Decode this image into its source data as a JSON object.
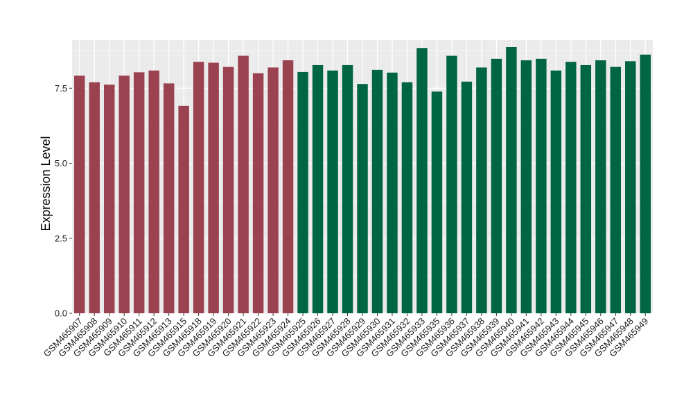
{
  "chart_data": {
    "type": "bar",
    "title": "",
    "xlabel": "",
    "ylabel": "Expression Level",
    "ylim": [
      0,
      9.1
    ],
    "yticks": [
      0.0,
      2.5,
      5.0,
      7.5
    ],
    "ytick_labels": [
      "0.0",
      "2.5",
      "5.0",
      "7.5"
    ],
    "grid": true,
    "legend": "none",
    "categories": [
      "GSM465907",
      "GSM465908",
      "GSM465909",
      "GSM465910",
      "GSM465911",
      "GSM465912",
      "GSM465913",
      "GSM465915",
      "GSM465918",
      "GSM465919",
      "GSM465920",
      "GSM465921",
      "GSM465922",
      "GSM465923",
      "GSM465924",
      "GSM465925",
      "GSM465926",
      "GSM465927",
      "GSM465928",
      "GSM465929",
      "GSM465930",
      "GSM465931",
      "GSM465932",
      "GSM465933",
      "GSM465935",
      "GSM465936",
      "GSM465937",
      "GSM465938",
      "GSM465939",
      "GSM465940",
      "GSM465941",
      "GSM465942",
      "GSM465943",
      "GSM465944",
      "GSM465945",
      "GSM465946",
      "GSM465947",
      "GSM465948",
      "GSM465949"
    ],
    "values": [
      7.92,
      7.7,
      7.62,
      7.92,
      8.03,
      8.09,
      7.66,
      6.91,
      8.38,
      8.35,
      8.21,
      8.58,
      8.0,
      8.19,
      8.43,
      8.04,
      8.27,
      8.09,
      8.27,
      7.64,
      8.11,
      8.02,
      7.7,
      8.84,
      7.39,
      8.58,
      7.72,
      8.19,
      8.48,
      8.87,
      8.43,
      8.48,
      8.09,
      8.38,
      8.27,
      8.43,
      8.21,
      8.4,
      8.62
    ],
    "groups": [
      0,
      0,
      0,
      0,
      0,
      0,
      0,
      0,
      0,
      0,
      0,
      0,
      0,
      0,
      0,
      1,
      1,
      1,
      1,
      1,
      1,
      1,
      1,
      1,
      1,
      1,
      1,
      1,
      1,
      1,
      1,
      1,
      1,
      1,
      1,
      1,
      1,
      1,
      1
    ],
    "colors": [
      "#9b4251",
      "#006543"
    ],
    "panel_background": "#ebebeb",
    "grid_color": "#ffffff"
  }
}
